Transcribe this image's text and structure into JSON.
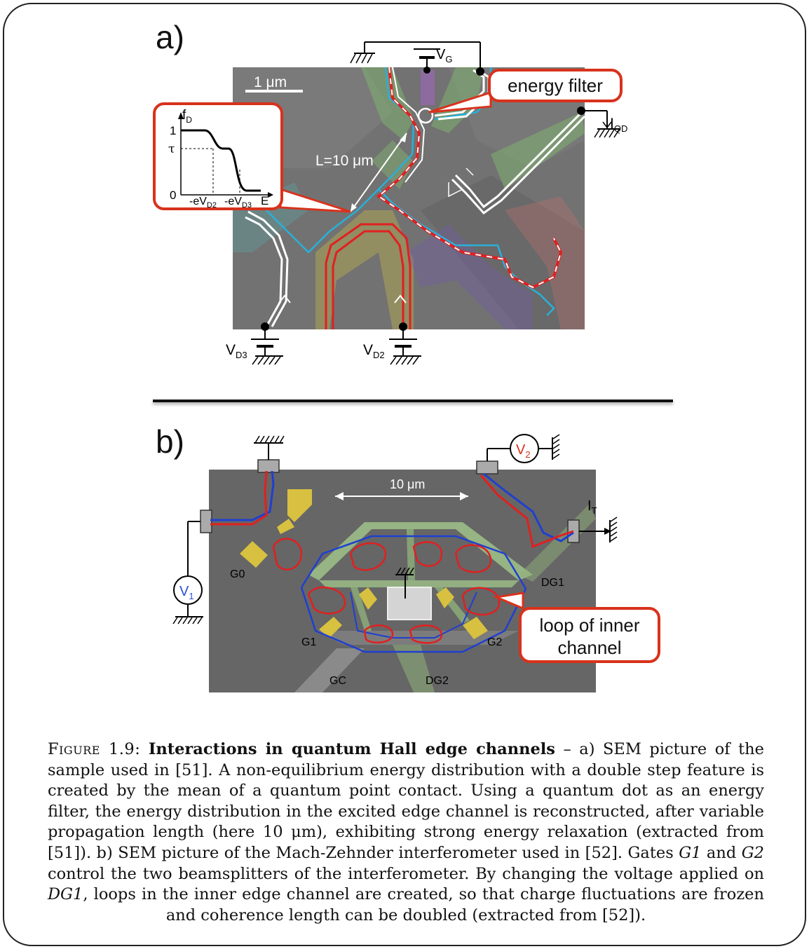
{
  "panel_a": {
    "label": "a)",
    "scale_bar": "1 μm",
    "gate_voltage": "V",
    "gate_voltage_sub": "G",
    "current_label": "I",
    "current_label_sub": "QD",
    "energy_filter_callout": "energy filter",
    "length_label": "L=10 μm",
    "source_d3": "V",
    "source_d3_sub": "D3",
    "source_d2": "V",
    "source_d2_sub": "D2",
    "inset": {
      "y_label": "f",
      "y_label_sub": "D",
      "y_tick_1": "1",
      "y_tick_tau": "τ",
      "y_tick_0": "0",
      "x_tick_1": "-eV",
      "x_tick_1_sub": "D2",
      "x_tick_2": "-eV",
      "x_tick_2_sub": "D3",
      "x_label": "E"
    }
  },
  "panel_b": {
    "label": "b)",
    "scale_bar": "10 μm",
    "v1": "V",
    "v1_sub": "1",
    "v2": "V",
    "v2_sub": "2",
    "it": "I",
    "it_sub": "T",
    "gates": {
      "g0": "G0",
      "g1": "G1",
      "g2": "G2",
      "gc": "GC",
      "dg1": "DG1",
      "dg2": "DG2"
    },
    "callout_line1": "loop of inner",
    "callout_line2": "channel"
  },
  "caption": {
    "figure_prefix": "Figure 1.9:",
    "title": "Interactions in quantum Hall edge channels",
    "part1": " – a) SEM picture of the sample used in [51]. A non-equilibrium energy distribution with a double step feature is created by the mean of a quantum point contact. Using a quantum dot as an energy filter, the energy distribution in the excited edge channel is reconstructed, after variable propagation length (here 10 μm), exhibiting strong energy relaxation (extracted from [51]). b) SEM picture of the Mach-Zehnder interferometer used in [52]. Gates ",
    "g1": "G1",
    "part2": " and ",
    "g2": "G2",
    "part3": " control the two beamsplitters of the interferometer. By changing the voltage applied on ",
    "dg1": "DG1",
    "part4": ", loops in the inner edge channel are created, so that charge fluctuations are frozen and coherence length can be doubled (extracted from [52])."
  },
  "colors": {
    "frame": "#222222",
    "callout_border": "#d8321c",
    "edge_red": "#e02020",
    "edge_cyan": "#2ab0d8",
    "edge_blue": "#1f3fd0",
    "voltmeter_red": "#d8321c",
    "voltmeter_blue": "#2a4fd8",
    "gate_yellow": "#d8c040",
    "gate_green": "#8fbf6a"
  }
}
